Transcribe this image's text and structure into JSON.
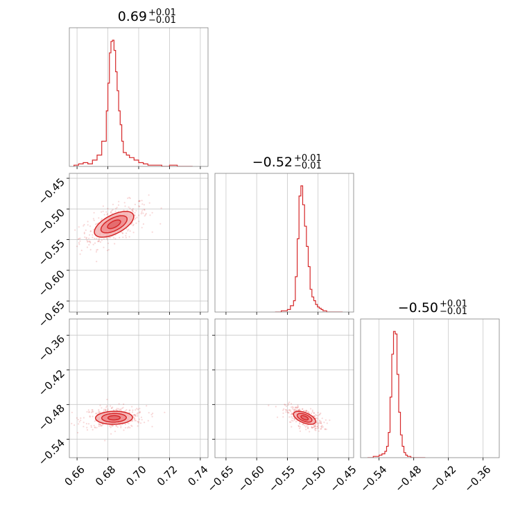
{
  "chart_data": {
    "type": "corner",
    "color": "#d62728",
    "grid": true,
    "parameters": [
      {
        "title_main": "0.69",
        "title_sup": "+0.01",
        "title_sub": "−0.01",
        "range": [
          0.655,
          0.745
        ]
      },
      {
        "title_main": "−0.52",
        "title_sup": "+0.01",
        "title_sub": "−0.01",
        "range": [
          -0.668,
          -0.442
        ]
      },
      {
        "title_main": "−0.50",
        "title_sup": "+0.01",
        "title_sub": "−0.01",
        "range": [
          -0.572,
          -0.332
        ]
      }
    ],
    "ticks": [
      [
        {
          "v": 0.66,
          "label": "0.66"
        },
        {
          "v": 0.68,
          "label": "0.68"
        },
        {
          "v": 0.7,
          "label": "0.70"
        },
        {
          "v": 0.72,
          "label": "0.72"
        },
        {
          "v": 0.74,
          "label": "0.74"
        }
      ],
      [
        {
          "v": -0.65,
          "label": "−0.65"
        },
        {
          "v": -0.6,
          "label": "−0.60"
        },
        {
          "v": -0.55,
          "label": "−0.55"
        },
        {
          "v": -0.5,
          "label": "−0.50"
        },
        {
          "v": -0.45,
          "label": "−0.45"
        }
      ],
      [
        {
          "v": -0.54,
          "label": "−0.54"
        },
        {
          "v": -0.48,
          "label": "−0.48"
        },
        {
          "v": -0.42,
          "label": "−0.42"
        },
        {
          "v": -0.36,
          "label": "−0.36"
        }
      ]
    ],
    "histograms": [
      {
        "bins": [
          0.658,
          0.661,
          0.664,
          0.667,
          0.67,
          0.673,
          0.676,
          0.679,
          0.68,
          0.681,
          0.682,
          0.683,
          0.684,
          0.685,
          0.686,
          0.687,
          0.688,
          0.689,
          0.69,
          0.692,
          0.694,
          0.697,
          0.7,
          0.703,
          0.706,
          0.71,
          0.715,
          0.72,
          0.725,
          0.73,
          0.735
        ],
        "counts": [
          1,
          2,
          3,
          2,
          5,
          9,
          20,
          44,
          66,
          90,
          99,
          100,
          92,
          75,
          60,
          44,
          33,
          20,
          11,
          9,
          7,
          5,
          3,
          2,
          1,
          1,
          0,
          1,
          0,
          0
        ]
      },
      {
        "bins": [
          -0.57,
          -0.56,
          -0.55,
          -0.545,
          -0.54,
          -0.537,
          -0.534,
          -0.531,
          -0.528,
          -0.525,
          -0.522,
          -0.519,
          -0.516,
          -0.513,
          -0.51,
          -0.507,
          -0.504,
          -0.501,
          -0.498,
          -0.495,
          -0.492,
          -0.489,
          -0.486,
          -0.48,
          -0.47,
          -0.46
        ],
        "counts": [
          0,
          1,
          2,
          5,
          9,
          28,
          58,
          92,
          100,
          85,
          68,
          52,
          36,
          18,
          12,
          9,
          6,
          4,
          3,
          2,
          1,
          1,
          0,
          0,
          0
        ]
      },
      {
        "bins": [
          -0.56,
          -0.55,
          -0.545,
          -0.54,
          -0.535,
          -0.53,
          -0.527,
          -0.524,
          -0.521,
          -0.518,
          -0.515,
          -0.512,
          -0.509,
          -0.506,
          -0.503,
          -0.5,
          -0.497,
          -0.494,
          -0.491,
          -0.488,
          -0.485,
          -0.482,
          -0.479,
          -0.47,
          -0.46
        ],
        "counts": [
          0,
          1,
          1,
          2,
          3,
          5,
          9,
          20,
          48,
          82,
          100,
          98,
          66,
          36,
          18,
          9,
          4,
          2,
          1,
          1,
          0,
          0,
          0,
          0
        ]
      }
    ],
    "pairs": [
      {
        "row": 1,
        "col": 0,
        "mean": [
          0.684,
          -0.525
        ],
        "sd": [
          0.0085,
          0.014
        ],
        "rho": 0.6,
        "n": 360
      },
      {
        "row": 2,
        "col": 0,
        "mean": [
          0.684,
          -0.503
        ],
        "sd": [
          0.008,
          0.0075
        ],
        "rho": 0.05,
        "n": 360
      },
      {
        "row": 2,
        "col": 1,
        "mean": [
          -0.522,
          -0.503
        ],
        "sd": [
          0.012,
          0.0075
        ],
        "rho": -0.55,
        "n": 360
      }
    ],
    "contour_levels": [
      0.5,
      1.0,
      1.5
    ]
  }
}
